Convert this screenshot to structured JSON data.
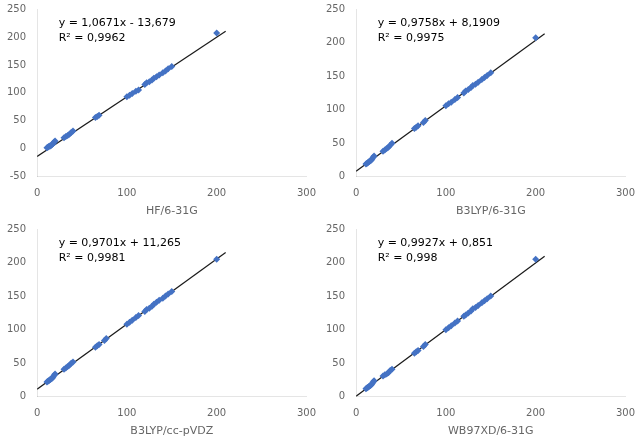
{
  "chart_data": [
    {
      "type": "scatter",
      "x_label": "HF/6-31G",
      "annotations": [
        "y = 1,0671x - 13,679",
        "R² = 0,9962"
      ],
      "xlim": [
        0,
        300
      ],
      "xticks": [
        0,
        100,
        200,
        300
      ],
      "ylim": [
        -50,
        250
      ],
      "yticks": [
        -50,
        0,
        50,
        100,
        150,
        200,
        250
      ],
      "grid": false,
      "series": [
        {
          "type": "scatter",
          "color": "#4472C4",
          "marker": "diamond",
          "x": [
            11,
            12,
            13,
            14,
            15,
            16,
            17,
            18,
            19,
            20,
            30,
            32,
            34,
            36,
            38,
            40,
            65,
            67,
            69,
            100,
            103,
            106,
            110,
            113,
            120,
            122,
            125,
            128,
            130,
            133,
            136,
            140,
            143,
            146,
            150,
            200
          ],
          "values": [
            2,
            3,
            4,
            5,
            5,
            7,
            8,
            10,
            12,
            14,
            20,
            22,
            24,
            26,
            29,
            32,
            56,
            58,
            60,
            93,
            96,
            99,
            103,
            105,
            115,
            118,
            120,
            123,
            126,
            129,
            132,
            136,
            139,
            143,
            147,
            207
          ]
        },
        {
          "type": "line",
          "color": "#1a1a1a",
          "x": [
            0,
            210
          ],
          "values": [
            -13.679,
            210.412
          ]
        }
      ]
    },
    {
      "type": "scatter",
      "x_label": "B3LYP/6-31G",
      "annotations": [
        "y = 0,9758x + 8,1909",
        "R² = 0,9975"
      ],
      "xlim": [
        0,
        300
      ],
      "xticks": [
        0,
        100,
        200,
        300
      ],
      "ylim": [
        0,
        250
      ],
      "yticks": [
        0,
        50,
        100,
        150,
        200,
        250
      ],
      "grid": false,
      "series": [
        {
          "type": "scatter",
          "color": "#4472C4",
          "marker": "diamond",
          "x": [
            11,
            12,
            13,
            14,
            15,
            16,
            17,
            18,
            19,
            20,
            30,
            32,
            34,
            36,
            38,
            40,
            65,
            67,
            69,
            75,
            77,
            100,
            103,
            106,
            110,
            113,
            120,
            122,
            125,
            128,
            130,
            133,
            136,
            140,
            143,
            146,
            150,
            200
          ],
          "values": [
            19,
            20,
            21,
            22,
            23,
            24,
            25,
            27,
            29,
            31,
            38,
            40,
            42,
            44,
            47,
            50,
            72,
            74,
            76,
            81,
            84,
            106,
            109,
            111,
            115,
            118,
            125,
            128,
            130,
            133,
            136,
            138,
            141,
            145,
            148,
            151,
            155,
            207
          ]
        },
        {
          "type": "line",
          "color": "#1a1a1a",
          "x": [
            0,
            210
          ],
          "values": [
            8.1909,
            213.1089
          ]
        }
      ]
    },
    {
      "type": "scatter",
      "x_label": "B3LYP/cc-pVDZ",
      "annotations": [
        "y = 0,9701x + 11,265",
        "R² = 0,9981"
      ],
      "xlim": [
        0,
        300
      ],
      "xticks": [
        0,
        100,
        200,
        300
      ],
      "ylim": [
        0,
        250
      ],
      "yticks": [
        0,
        50,
        100,
        150,
        200,
        250
      ],
      "grid": false,
      "series": [
        {
          "type": "scatter",
          "color": "#4472C4",
          "marker": "diamond",
          "x": [
            11,
            12,
            13,
            14,
            15,
            16,
            17,
            18,
            19,
            20,
            30,
            32,
            34,
            36,
            38,
            40,
            65,
            67,
            69,
            75,
            77,
            100,
            103,
            106,
            110,
            113,
            120,
            122,
            125,
            128,
            130,
            133,
            136,
            140,
            143,
            146,
            150,
            200
          ],
          "values": [
            22,
            23,
            24,
            25,
            26,
            27,
            28,
            30,
            32,
            34,
            41,
            43,
            45,
            47,
            50,
            52,
            74,
            76,
            78,
            84,
            87,
            108,
            111,
            114,
            118,
            121,
            127,
            130,
            132,
            135,
            138,
            141,
            144,
            147,
            150,
            153,
            157,
            205
          ]
        },
        {
          "type": "line",
          "color": "#1a1a1a",
          "x": [
            0,
            210
          ],
          "values": [
            11.265,
            214.986
          ]
        }
      ]
    },
    {
      "type": "scatter",
      "x_label": "WB97XD/6-31G",
      "annotations": [
        "y = 0,9927x + 0,851",
        "R² = 0,998"
      ],
      "xlim": [
        0,
        300
      ],
      "xticks": [
        0,
        100,
        200,
        300
      ],
      "ylim": [
        0,
        250
      ],
      "yticks": [
        0,
        50,
        100,
        150,
        200,
        250
      ],
      "grid": false,
      "series": [
        {
          "type": "scatter",
          "color": "#4472C4",
          "marker": "diamond",
          "x": [
            11,
            12,
            13,
            14,
            15,
            16,
            17,
            18,
            19,
            20,
            30,
            32,
            34,
            36,
            38,
            40,
            65,
            67,
            69,
            75,
            77,
            100,
            103,
            106,
            110,
            113,
            120,
            122,
            125,
            128,
            130,
            133,
            136,
            140,
            143,
            146,
            150,
            200
          ],
          "values": [
            12,
            13,
            14,
            15,
            16,
            17,
            18,
            20,
            22,
            24,
            31,
            33,
            34,
            36,
            39,
            41,
            65,
            67,
            69,
            75,
            78,
            100,
            103,
            106,
            110,
            113,
            120,
            122,
            125,
            128,
            131,
            133,
            136,
            140,
            143,
            146,
            150,
            205
          ]
        },
        {
          "type": "line",
          "color": "#1a1a1a",
          "x": [
            0,
            210
          ],
          "values": [
            0.851,
            209.318
          ]
        }
      ]
    }
  ]
}
